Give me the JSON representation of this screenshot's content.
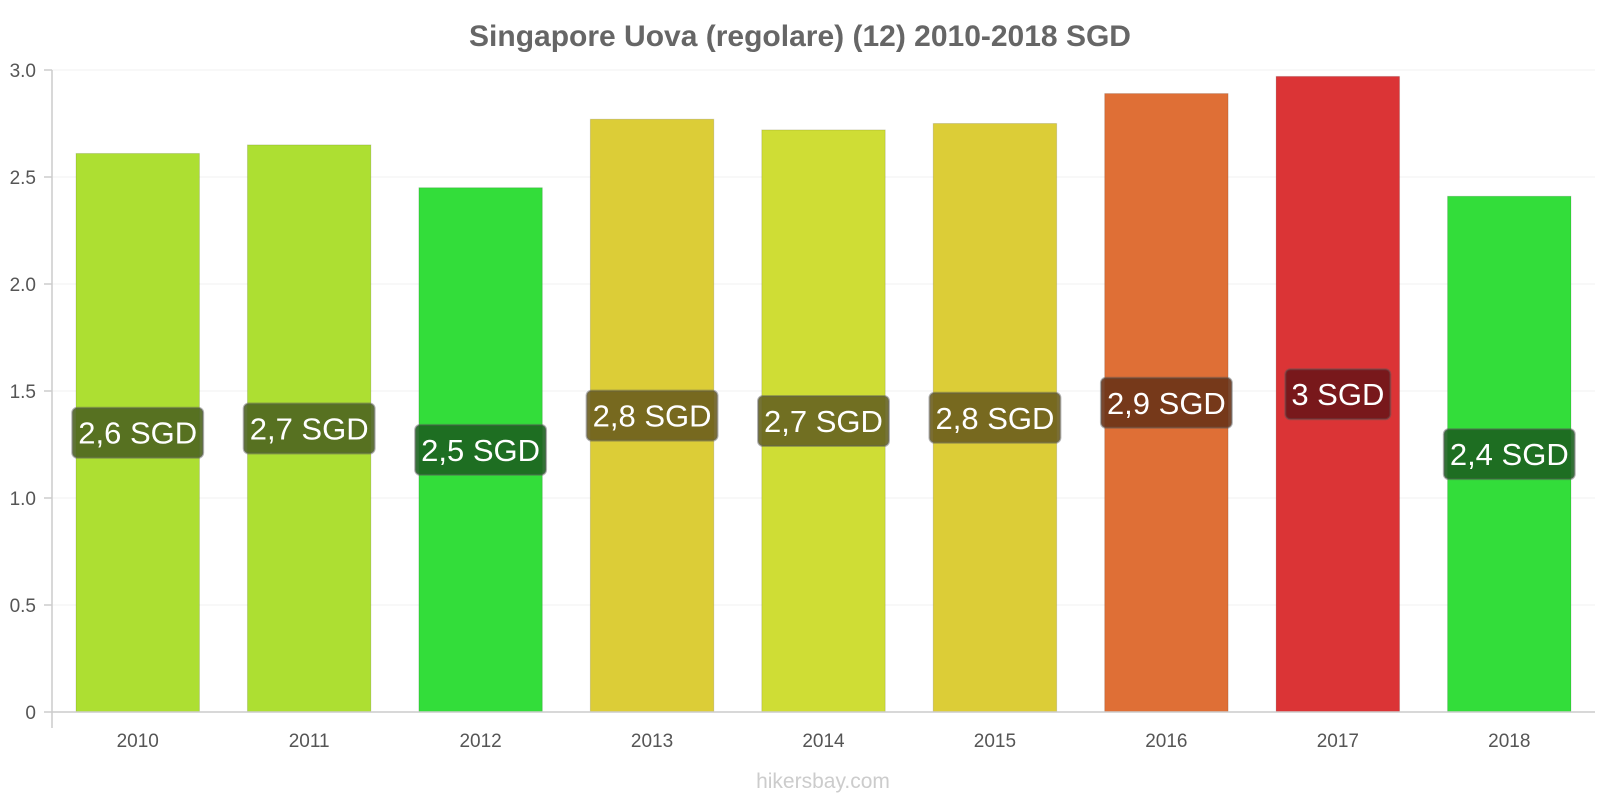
{
  "chart_data": {
    "type": "bar",
    "title": "Singapore Uova (regolare) (12) 2010-2018 SGD",
    "categories": [
      "2010",
      "2011",
      "2012",
      "2013",
      "2014",
      "2015",
      "2016",
      "2017",
      "2018"
    ],
    "values": [
      2.61,
      2.65,
      2.45,
      2.77,
      2.72,
      2.75,
      2.89,
      2.97,
      2.41
    ],
    "data_labels": [
      "2,6 SGD",
      "2,7 SGD",
      "2,5 SGD",
      "2,8 SGD",
      "2,7 SGD",
      "2,8 SGD",
      "2,9 SGD",
      "3 SGD",
      "2,4 SGD"
    ],
    "colors": [
      "#addf32",
      "#addf32",
      "#33dd3a",
      "#dccd37",
      "#cfdd35",
      "#dccd37",
      "#df6f36",
      "#db3436",
      "#33dd3a"
    ],
    "label_bg_colors": [
      "#4e6620",
      "#4e6620",
      "#1c6320",
      "#6d5f1d",
      "#676420",
      "#6d5f1d",
      "#6b3418",
      "#6e1519",
      "#1c6320"
    ],
    "yticks": [
      0,
      0.5,
      1.0,
      1.5,
      2.0,
      2.5,
      3.0
    ],
    "ytick_labels": [
      "0",
      "0.5",
      "1.0",
      "1.5",
      "2.0",
      "2.5",
      "3.0"
    ],
    "ylim": [
      0,
      3.0
    ],
    "xlabel": "",
    "ylabel": "",
    "grid": true,
    "credit": "hikersbay.com"
  }
}
